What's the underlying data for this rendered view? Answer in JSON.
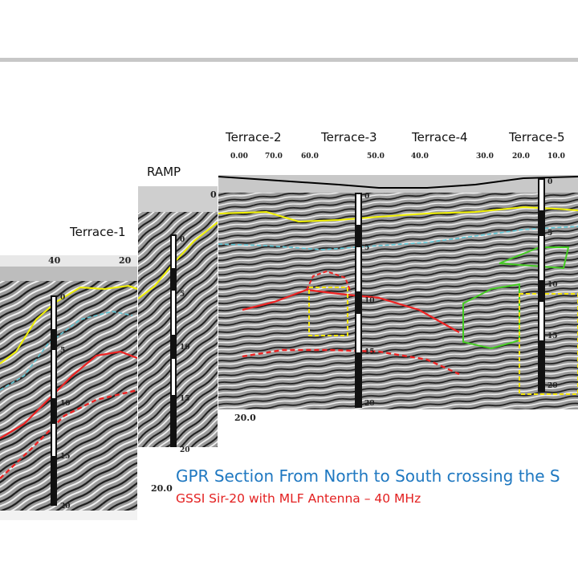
{
  "labels": {
    "terrace1": "Terrace-1",
    "ramp": "RAMP",
    "terrace2": "Terrace-2",
    "terrace3": "Terrace-3",
    "terrace4": "Terrace-4",
    "terrace5": "Terrace-5"
  },
  "ruler_main": [
    "0.00",
    "70.0",
    "60.0",
    "50.0",
    "40.0",
    "30.0",
    "20.0",
    "10.0"
  ],
  "ruler_left": [
    "40",
    "20"
  ],
  "ramp_zero": "0",
  "borehole_depths": {
    "b1": [
      "0",
      "5",
      "10",
      "15",
      "20"
    ],
    "b2": [
      "0",
      "5",
      "10",
      "15",
      "20"
    ],
    "b3": [
      "0",
      "5",
      "10",
      "15",
      "20"
    ],
    "b4": [
      "0",
      "5",
      "10",
      "15",
      "20"
    ]
  },
  "scale_labels": [
    "20.0",
    "20.0"
  ],
  "caption": {
    "title": "GPR Section From North to South crossing the S",
    "subtitle": "GSSI Sir-20 with MLF Antenna – 40 MHz"
  },
  "colors": {
    "yellow": "#f2f200",
    "cyan": "#5cc8d8",
    "red": "#ee2222",
    "green": "#44cc22",
    "dash_yellow": "#f5e60a",
    "caption_blue": "#1f78c1",
    "caption_red": "#e32020"
  }
}
